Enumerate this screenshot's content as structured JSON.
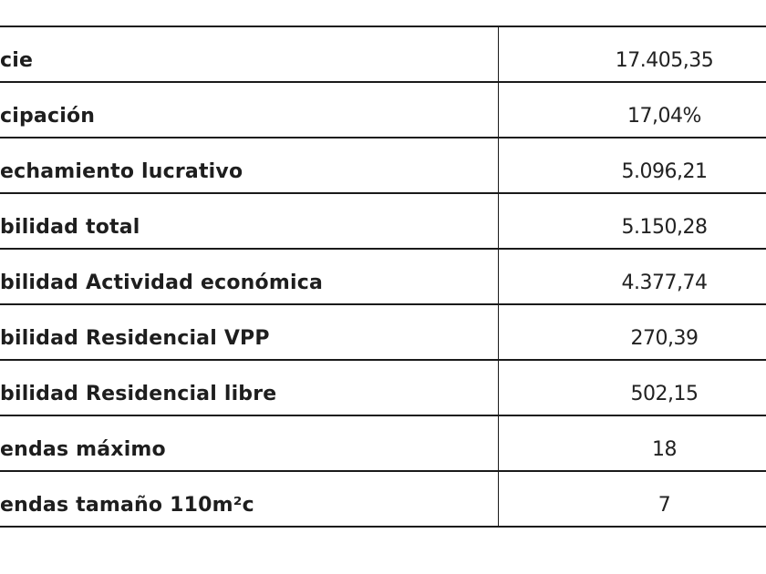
{
  "rows": [
    {
      "label": "cie",
      "value": "17.405,35"
    },
    {
      "label": "cipación",
      "value": "17,04%"
    },
    {
      "label": "echamiento lucrativo",
      "value": "5.096,21"
    },
    {
      "label": "bilidad total",
      "value": "5.150,28"
    },
    {
      "label": "bilidad Actividad económica",
      "value": "4.377,74"
    },
    {
      "label": "bilidad Residencial VPP",
      "value": "270,39"
    },
    {
      "label": "bilidad Residencial libre",
      "value": "502,15"
    },
    {
      "label": "endas máximo",
      "value": "18"
    },
    {
      "label": "endas tamaño 110m²c",
      "value": "7"
    }
  ]
}
